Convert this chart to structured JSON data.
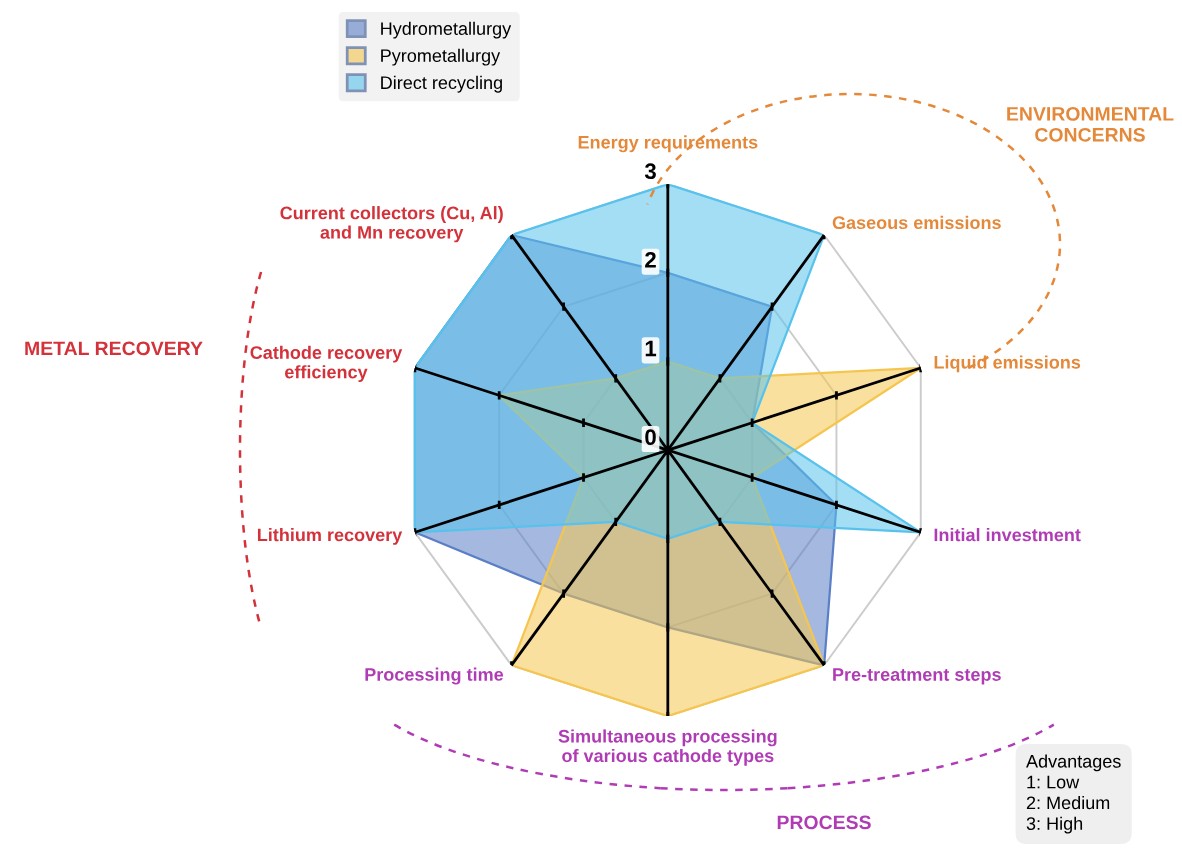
{
  "chart_data": {
    "type": "radar",
    "categories": [
      "Energy requirements",
      "Gaseous emissions",
      "Liquid emissions",
      "Initial investment",
      "Pre-treatment steps",
      "Simultaneous processing\nof various cathode types",
      "Processing time",
      "Lithium recovery",
      "Cathode recovery\nefficiency",
      "Current collectors (Cu, Al)\nand Mn recovery"
    ],
    "series": [
      {
        "name": "Hydrometallurgy",
        "color": "#5b7fc6",
        "values": [
          2,
          2,
          1,
          2,
          3,
          2,
          2,
          3,
          3,
          3
        ]
      },
      {
        "name": "Pyrometallurgy",
        "color": "#f5c64f",
        "values": [
          1,
          1,
          3,
          1,
          3,
          3,
          3,
          1,
          2,
          1
        ]
      },
      {
        "name": "Direct recycling",
        "color": "#58c2ec",
        "values": [
          3,
          3,
          1,
          3,
          1,
          1,
          1,
          3,
          3,
          3
        ]
      }
    ],
    "ylim": [
      0,
      3
    ],
    "yticks": [
      0,
      1,
      2,
      3
    ],
    "grid": true,
    "legend": "top left",
    "annotations": [
      "ENVIRONMENTAL\nCONCERNS",
      "METAL RECOVERY",
      "PROCESS",
      "Advantages\n1: Low\n2: Medium\n3: High"
    ]
  }
}
